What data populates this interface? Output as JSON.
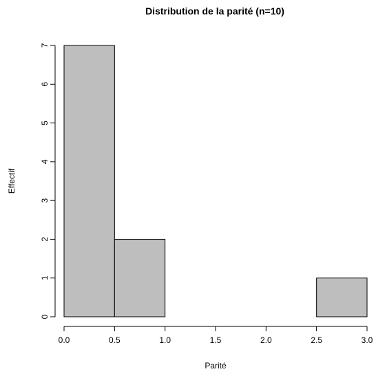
{
  "chart_data": {
    "type": "bar",
    "title": "Distribution de la parité (n=10)",
    "xlabel": "Parité",
    "ylabel": "Effectif",
    "bins": [
      {
        "start": 0.0,
        "end": 0.5,
        "count": 7
      },
      {
        "start": 0.5,
        "end": 1.0,
        "count": 2
      },
      {
        "start": 1.0,
        "end": 1.5,
        "count": 0
      },
      {
        "start": 1.5,
        "end": 2.0,
        "count": 0
      },
      {
        "start": 2.0,
        "end": 2.5,
        "count": 0
      },
      {
        "start": 2.5,
        "end": 3.0,
        "count": 1
      }
    ],
    "xlim": [
      0,
      3
    ],
    "ylim": [
      0,
      7
    ],
    "x_ticks": [
      0.0,
      0.5,
      1.0,
      1.5,
      2.0,
      2.5,
      3.0
    ],
    "x_tick_labels": [
      "0.0",
      "0.5",
      "1.0",
      "1.5",
      "2.0",
      "2.5",
      "3.0"
    ],
    "y_ticks": [
      0,
      1,
      2,
      3,
      4,
      5,
      6,
      7
    ],
    "y_tick_labels": [
      "0",
      "1",
      "2",
      "3",
      "4",
      "5",
      "6",
      "7"
    ],
    "bar_color": "#bebebe",
    "edge_color": "#000000",
    "grid": false,
    "legend": "none"
  }
}
